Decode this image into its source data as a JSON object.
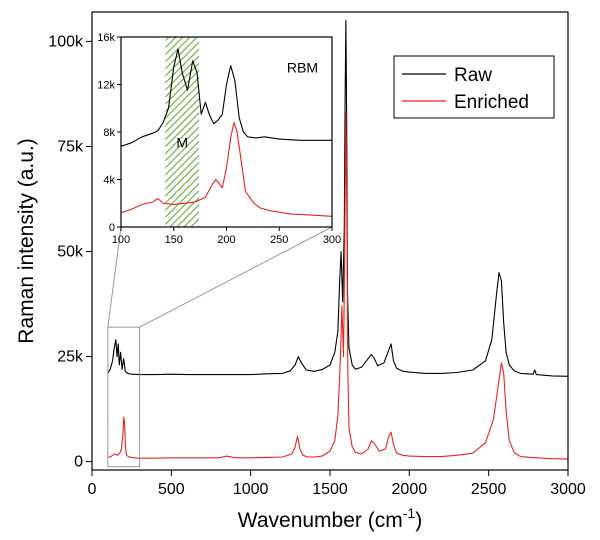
{
  "chart_data": [
    {
      "type": "line",
      "title": "",
      "xlabel_base": "Wavenumber (cm",
      "xlabel_sup": "-1",
      "xlabel_close": ")",
      "ylabel": "Raman intensity (a.u.)",
      "xlim": [
        0,
        3000
      ],
      "ylim": [
        -2000,
        107000
      ],
      "xticks": [
        0,
        500,
        1000,
        1500,
        2000,
        2500,
        3000
      ],
      "xtick_labels": [
        "0",
        "500",
        "1000",
        "1500",
        "2000",
        "2500",
        "3000"
      ],
      "yticks": [
        0,
        25000,
        50000,
        75000,
        100000
      ],
      "ytick_labels": [
        "0",
        "25k",
        "50k",
        "75k",
        "100k"
      ],
      "legend": {
        "placement": "top-right",
        "entries": [
          "Raw",
          "Enriched"
        ]
      },
      "series": [
        {
          "name": "Raw",
          "color": "#000000",
          "x": [
            100,
            115,
            130,
            140,
            150,
            158,
            165,
            172,
            180,
            190,
            200,
            210,
            225,
            250,
            300,
            400,
            500,
            600,
            700,
            800,
            900,
            1000,
            1100,
            1200,
            1250,
            1280,
            1300,
            1320,
            1350,
            1400,
            1450,
            1500,
            1530,
            1550,
            1560,
            1570,
            1580,
            1590,
            1595,
            1600,
            1605,
            1610,
            1620,
            1640,
            1660,
            1700,
            1740,
            1760,
            1780,
            1800,
            1840,
            1870,
            1885,
            1900,
            1920,
            1960,
            2000,
            2100,
            2200,
            2300,
            2400,
            2480,
            2520,
            2550,
            2565,
            2580,
            2595,
            2610,
            2630,
            2660,
            2700,
            2780,
            2790,
            2800,
            2900,
            3000
          ],
          "y": [
            21000,
            22000,
            24000,
            27000,
            29000,
            25000,
            28000,
            23000,
            26000,
            22000,
            24500,
            21500,
            21000,
            20800,
            20700,
            20700,
            20800,
            20700,
            20700,
            20700,
            20700,
            20700,
            20900,
            21000,
            21600,
            23000,
            25000,
            23500,
            21800,
            21500,
            21900,
            23000,
            26000,
            31000,
            42000,
            50000,
            38000,
            56000,
            86000,
            105000,
            80000,
            40000,
            27000,
            23000,
            22000,
            22500,
            24500,
            25500,
            24500,
            22800,
            23500,
            26500,
            28000,
            24000,
            22200,
            21500,
            21300,
            21000,
            21000,
            21200,
            21800,
            24000,
            29000,
            40000,
            45000,
            43000,
            33000,
            26000,
            23000,
            21600,
            21000,
            20800,
            21800,
            20700,
            20400,
            20300
          ]
        },
        {
          "name": "Enriched",
          "color": "#e8231e",
          "x": [
            100,
            120,
            140,
            160,
            175,
            185,
            195,
            200,
            205,
            210,
            215,
            220,
            235,
            260,
            300,
            400,
            500,
            600,
            700,
            800,
            850,
            900,
            1000,
            1100,
            1200,
            1260,
            1280,
            1295,
            1310,
            1330,
            1360,
            1400,
            1450,
            1500,
            1530,
            1550,
            1565,
            1575,
            1585,
            1592,
            1600,
            1606,
            1612,
            1620,
            1640,
            1660,
            1700,
            1740,
            1760,
            1780,
            1810,
            1850,
            1870,
            1885,
            1900,
            1920,
            1960,
            2000,
            2100,
            2200,
            2300,
            2400,
            2480,
            2530,
            2560,
            2580,
            2595,
            2610,
            2630,
            2660,
            2700,
            2800,
            2900,
            3000
          ],
          "y": [
            1000,
            1200,
            1800,
            1500,
            2000,
            3000,
            6500,
            10500,
            9500,
            4500,
            2000,
            1400,
            1100,
            900,
            800,
            800,
            900,
            900,
            900,
            900,
            1300,
            900,
            900,
            1000,
            1100,
            1800,
            3500,
            6000,
            3000,
            1500,
            1100,
            1100,
            1300,
            2500,
            5000,
            11000,
            24000,
            37000,
            25000,
            48000,
            83000,
            60000,
            22000,
            8000,
            3500,
            2200,
            1800,
            3000,
            5000,
            4300,
            2500,
            3000,
            6000,
            7000,
            4000,
            2000,
            1500,
            1300,
            1200,
            1200,
            1500,
            2000,
            4500,
            10000,
            18000,
            23500,
            21000,
            12000,
            5000,
            2200,
            1200,
            900,
            700,
            600
          ]
        }
      ]
    },
    {
      "type": "line",
      "title": "",
      "xlabel": "",
      "ylabel": "",
      "xlim": [
        100,
        300
      ],
      "ylim": [
        0,
        16000
      ],
      "xticks": [
        100,
        150,
        200,
        250,
        300
      ],
      "xtick_labels": [
        "100",
        "150",
        "200",
        "250",
        "300"
      ],
      "yticks": [
        0,
        4000,
        8000,
        12000,
        16000
      ],
      "ytick_labels": [
        "0",
        "4k",
        "8k",
        "12k",
        "16k"
      ],
      "annotations": [
        "M",
        "RBM"
      ],
      "shaded_band": {
        "label": "M",
        "x": [
          142,
          174
        ]
      },
      "series": [
        {
          "name": "Raw",
          "color": "#000000",
          "x": [
            100,
            110,
            120,
            130,
            135,
            140,
            145,
            150,
            154,
            158,
            163,
            168,
            172,
            176,
            180,
            184,
            188,
            192,
            196,
            200,
            204,
            208,
            212,
            216,
            220,
            228,
            236,
            250,
            270,
            300
          ],
          "y": [
            6800,
            7100,
            7600,
            7900,
            8100,
            8800,
            10000,
            13500,
            15000,
            13000,
            11500,
            14000,
            13000,
            9500,
            10500,
            9400,
            8700,
            9000,
            9500,
            12000,
            13600,
            12300,
            9200,
            8000,
            7600,
            7500,
            7600,
            7400,
            7300,
            7300
          ]
        },
        {
          "name": "Enriched",
          "color": "#e8231e",
          "x": [
            100,
            110,
            120,
            130,
            135,
            140,
            150,
            160,
            170,
            180,
            186,
            190,
            196,
            200,
            204,
            207,
            210,
            214,
            218,
            222,
            226,
            232,
            240,
            260,
            280,
            300
          ],
          "y": [
            1200,
            1500,
            1900,
            2100,
            2400,
            2000,
            1900,
            2000,
            2100,
            2500,
            3500,
            4000,
            3300,
            5000,
            7500,
            8800,
            8000,
            5500,
            3000,
            2500,
            2000,
            1600,
            1400,
            1100,
            1000,
            900
          ]
        }
      ]
    }
  ]
}
